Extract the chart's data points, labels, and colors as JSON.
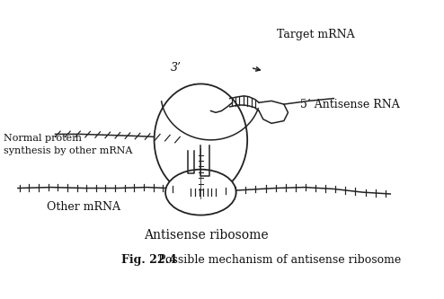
{
  "title": "Antisense ribosome",
  "fig_caption_bold": "Fig. 22.4",
  "fig_caption_rest": " Possible mechanism of antisense ribosome",
  "label_target_mrna": "Target mRNA",
  "label_antisense_rna": "5’ Antisense RNA",
  "label_normal_protein": "Normal protein\nsynthesis by other mRNA",
  "label_other_mrna": "Other mRNA",
  "label_3prime": "3’",
  "bg_color": "#ffffff",
  "line_color": "#222222",
  "text_color": "#111111"
}
